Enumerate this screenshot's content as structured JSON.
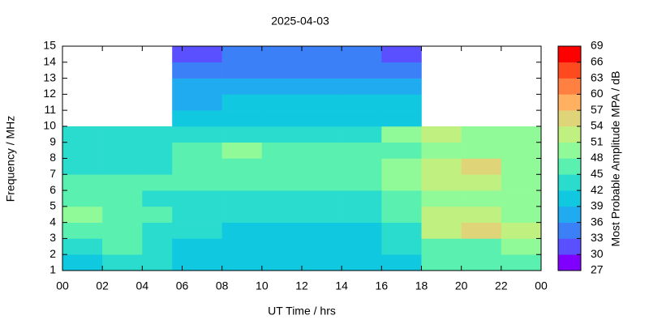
{
  "chart_data": {
    "type": "heatmap",
    "title": "2025-04-03",
    "xlabel": "UT Time / hrs",
    "ylabel": "Frequency / MHz",
    "colorbar_label": "Most Probable Amplitude MPA / dB",
    "x_bins": [
      0,
      2,
      4,
      5.5,
      8,
      10,
      12,
      14,
      16,
      18,
      20,
      22,
      24
    ],
    "y_bins": [
      1,
      2,
      3,
      4,
      5,
      6,
      7,
      8,
      9,
      10,
      11,
      12,
      13,
      14,
      15
    ],
    "values": [
      [
        41,
        42,
        42,
        40,
        39,
        39,
        39,
        39,
        41,
        45,
        45,
        46
      ],
      [
        44,
        45,
        43,
        41,
        41,
        41,
        41,
        41,
        43,
        47,
        47,
        48
      ],
      [
        47,
        45,
        44,
        42,
        41,
        41,
        41,
        41,
        44,
        52,
        54,
        51
      ],
      [
        50,
        47,
        45,
        43,
        43,
        42,
        42,
        42,
        45,
        52,
        52,
        50
      ],
      [
        46,
        45,
        44,
        44,
        44,
        43,
        43,
        44,
        46,
        50,
        49,
        48
      ],
      [
        47,
        45,
        46,
        46,
        46,
        45,
        45,
        46,
        48,
        52,
        52,
        50
      ],
      [
        44,
        43,
        43,
        47,
        47,
        46,
        46,
        46,
        48,
        53,
        55,
        50
      ],
      [
        42,
        42,
        42,
        46,
        48,
        47,
        47,
        47,
        47,
        49,
        50,
        48
      ],
      [
        42,
        42,
        42,
        42,
        42,
        42,
        42,
        43,
        48,
        51,
        50,
        49
      ],
      [
        null,
        null,
        null,
        40,
        40,
        40,
        40,
        40,
        40,
        null,
        null,
        null
      ],
      [
        null,
        null,
        null,
        38,
        39,
        39,
        39,
        40,
        39,
        null,
        null,
        null
      ],
      [
        null,
        null,
        null,
        37,
        37,
        37,
        37,
        38,
        37,
        null,
        null,
        null
      ],
      [
        null,
        null,
        null,
        35,
        35,
        35,
        35,
        35,
        35,
        null,
        null,
        null
      ],
      [
        null,
        null,
        null,
        32,
        33,
        33,
        33,
        33,
        32,
        null,
        null,
        null
      ]
    ],
    "xlim": [
      0,
      24
    ],
    "xticks": [
      {
        "value": 0,
        "label": "00"
      },
      {
        "value": 2,
        "label": "02"
      },
      {
        "value": 4,
        "label": "04"
      },
      {
        "value": 6,
        "label": "06"
      },
      {
        "value": 8,
        "label": "08"
      },
      10,
      12,
      14,
      16,
      18,
      20,
      22,
      {
        "value": 24,
        "label": "00"
      }
    ],
    "ylim": [
      1,
      15
    ],
    "yticks": [
      1,
      2,
      3,
      4,
      5,
      6,
      7,
      8,
      9,
      10,
      11,
      12,
      13,
      14,
      15
    ],
    "zlim": [
      27,
      69
    ],
    "zticks": [
      27,
      30,
      33,
      36,
      39,
      42,
      45,
      48,
      51,
      54,
      57,
      60,
      63,
      66,
      69
    ],
    "colorscale": [
      "#8000ff",
      "#5a50ff",
      "#3c80f8",
      "#20aaf0",
      "#10c8e0",
      "#2adccd",
      "#5af0b0",
      "#90fa98",
      "#c0f080",
      "#e0d478",
      "#ffb060",
      "#ff8040",
      "#ff4a20",
      "#ff0000"
    ]
  }
}
